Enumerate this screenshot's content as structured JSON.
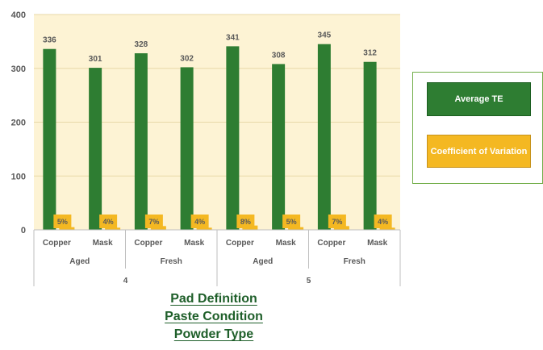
{
  "chart_data": {
    "type": "bar",
    "ylim": [
      0,
      400
    ],
    "yticks": [
      0,
      100,
      200,
      300,
      400
    ],
    "grid": true,
    "legend_position": "right",
    "categories": [
      {
        "pad": "4",
        "paste": "Aged",
        "powder": "Copper"
      },
      {
        "pad": "4",
        "paste": "Aged",
        "powder": "Mask"
      },
      {
        "pad": "4",
        "paste": "Fresh",
        "powder": "Copper"
      },
      {
        "pad": "4",
        "paste": "Fresh",
        "powder": "Mask"
      },
      {
        "pad": "5",
        "paste": "Aged",
        "powder": "Copper"
      },
      {
        "pad": "5",
        "paste": "Aged",
        "powder": "Mask"
      },
      {
        "pad": "5",
        "paste": "Fresh",
        "powder": "Copper"
      },
      {
        "pad": "5",
        "paste": "Fresh",
        "powder": "Mask"
      }
    ],
    "pad_groups": [
      "4",
      "5"
    ],
    "paste_groups": [
      "Aged",
      "Fresh",
      "Aged",
      "Fresh"
    ],
    "series": [
      {
        "name": "Average TE",
        "values": [
          336,
          301,
          328,
          302,
          341,
          308,
          345,
          312
        ],
        "labels": [
          "336",
          "301",
          "328",
          "302",
          "341",
          "308",
          "345",
          "312"
        ],
        "color": "#2e7d32"
      },
      {
        "name": "Coefficient of Variation",
        "values": [
          5,
          4,
          7,
          4,
          8,
          5,
          7,
          4
        ],
        "labels": [
          "5%",
          "4%",
          "7%",
          "4%",
          "8%",
          "5%",
          "7%",
          "4%"
        ],
        "color": "#f4b822"
      }
    ],
    "axis_titles": [
      "Pad Definition",
      "Paste Condition",
      "Powder Type"
    ]
  },
  "colors": {
    "plot_background": "#fdf3d4",
    "gridline": "#e8d9a8",
    "axis": "#bfbfbf"
  }
}
